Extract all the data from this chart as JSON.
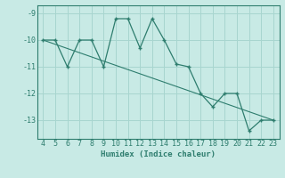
{
  "x": [
    4,
    5,
    6,
    7,
    8,
    9,
    10,
    11,
    12,
    13,
    14,
    15,
    16,
    17,
    18,
    19,
    20,
    21,
    22,
    23
  ],
  "y": [
    -10.0,
    -10.0,
    -11.0,
    -10.0,
    -10.0,
    -11.0,
    -9.2,
    -9.2,
    -10.3,
    -9.2,
    -10.0,
    -10.9,
    -11.0,
    -12.0,
    -12.5,
    -12.0,
    -12.0,
    -13.4,
    -13.0,
    -13.0
  ],
  "trend_x": [
    4,
    23
  ],
  "trend_y": [
    -10.0,
    -13.0
  ],
  "line_color": "#2e7d6e",
  "bg_color": "#c8eae5",
  "grid_color": "#a8d5cf",
  "axis_color": "#2e7d6e",
  "xlabel": "Humidex (Indice chaleur)",
  "yticks": [
    -9,
    -10,
    -11,
    -12,
    -13
  ],
  "xticks": [
    4,
    5,
    6,
    7,
    8,
    9,
    10,
    11,
    12,
    13,
    14,
    15,
    16,
    17,
    18,
    19,
    20,
    21,
    22,
    23
  ],
  "xlim": [
    3.5,
    23.5
  ],
  "ylim": [
    -13.7,
    -8.7
  ],
  "fontsize": 6.0,
  "xlabel_fontsize": 6.5
}
